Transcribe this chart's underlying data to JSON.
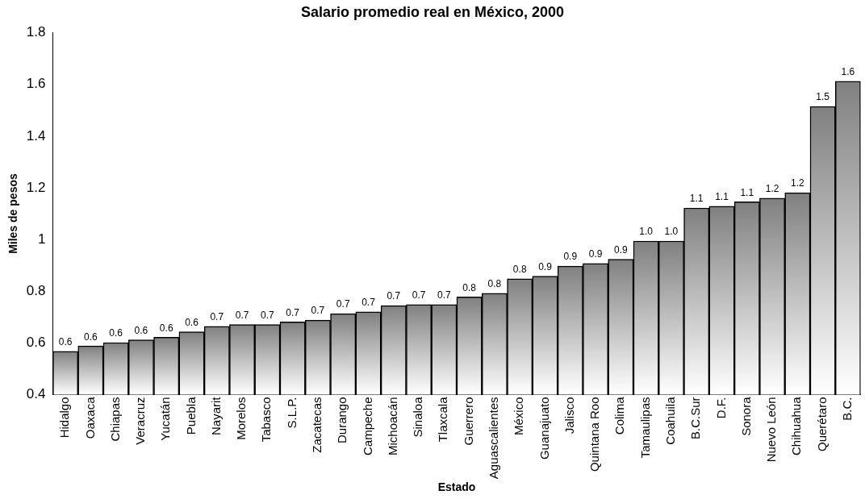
{
  "chart_data": {
    "type": "bar",
    "title": "Salario promedio real en México, 2000",
    "xlabel": "Estado",
    "ylabel": "Miles de pesos",
    "categories": [
      "Hidalgo",
      "Oaxaca",
      "Chiapas",
      "Veracruz",
      "Yucatán",
      "Puebla",
      "Nayarit",
      "Morelos",
      "Tabasco",
      "S.L.P.",
      "Zacatecas",
      "Durango",
      "Campeche",
      "Michoacán",
      "Sinaloa",
      "Tlaxcala",
      "Guerrero",
      "Aguascalientes",
      "México",
      "Guanajuato",
      "Jalisco",
      "Quintana Roo",
      "Colima",
      "Tamaulipas",
      "Coahuila",
      "B.C.Sur",
      "D.F.",
      "Sonora",
      "Nuevo León",
      "Chihuahua",
      "Querétaro",
      "B.C."
    ],
    "values": [
      0.567,
      0.588,
      0.601,
      0.612,
      0.622,
      0.643,
      0.664,
      0.671,
      0.671,
      0.681,
      0.688,
      0.713,
      0.72,
      0.744,
      0.748,
      0.748,
      0.778,
      0.792,
      0.848,
      0.858,
      0.897,
      0.907,
      0.924,
      0.994,
      0.994,
      1.122,
      1.129,
      1.146,
      1.16,
      1.181,
      1.515,
      1.612
    ],
    "value_labels": [
      "0.6",
      "0.6",
      "0.6",
      "0.6",
      "0.6",
      "0.6",
      "0.7",
      "0.7",
      "0.7",
      "0.7",
      "0.7",
      "0.7",
      "0.7",
      "0.7",
      "0.7",
      "0.7",
      "0.8",
      "0.8",
      "0.8",
      "0.9",
      "0.9",
      "0.9",
      "0.9",
      "1.0",
      "1.0",
      "1.1",
      "1.1",
      "1.1",
      "1.2",
      "1.2",
      "1.5",
      "1.6"
    ],
    "color": "#808080",
    "ylim": [
      0.4,
      1.8
    ],
    "yticks": [
      0.4,
      0.6,
      0.8,
      1,
      1.2,
      1.4,
      1.6,
      1.8
    ],
    "grid": false,
    "legend": false
  }
}
